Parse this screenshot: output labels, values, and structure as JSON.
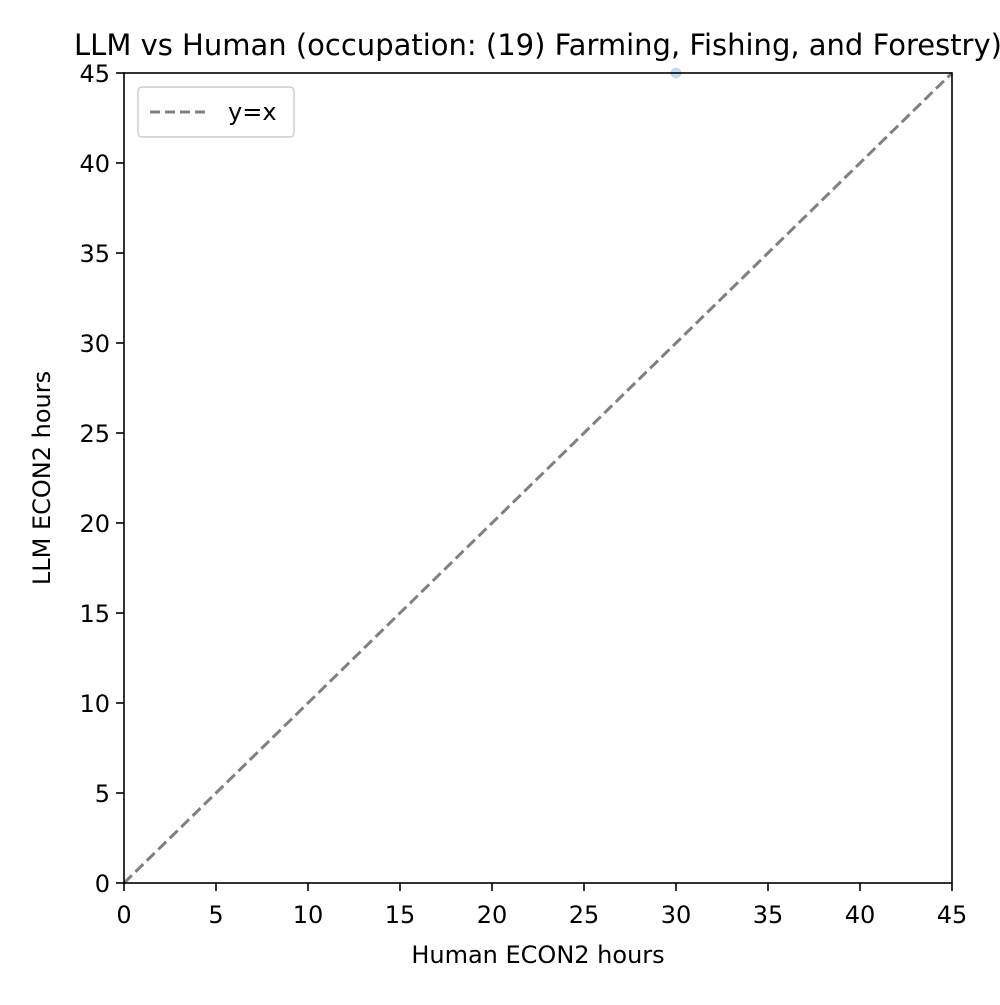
{
  "chart_data": {
    "type": "scatter",
    "title": "LLM vs Human (occupation: (19) Farming, Fishing, and Forestry)",
    "xlabel": "Human ECON2 hours",
    "ylabel": "LLM ECON2 hours",
    "xlim": [
      0,
      45
    ],
    "ylim": [
      0,
      45
    ],
    "xticks": [
      "0",
      "5",
      "10",
      "15",
      "20",
      "25",
      "30",
      "35",
      "40",
      "45"
    ],
    "yticks": [
      "0",
      "5",
      "10",
      "15",
      "20",
      "25",
      "30",
      "35",
      "40",
      "45"
    ],
    "grid": false,
    "legend": {
      "placement": "top-left",
      "entries": [
        "y=x"
      ]
    },
    "series": [
      {
        "kind": "scatter",
        "x": [
          30
        ],
        "y": [
          45
        ],
        "color": "#1f77b4",
        "alpha": 0.25
      },
      {
        "kind": "line",
        "name": "y=x",
        "x": [
          0,
          45
        ],
        "y": [
          0,
          45
        ],
        "color": "#808080",
        "dash": "dashed"
      }
    ]
  }
}
